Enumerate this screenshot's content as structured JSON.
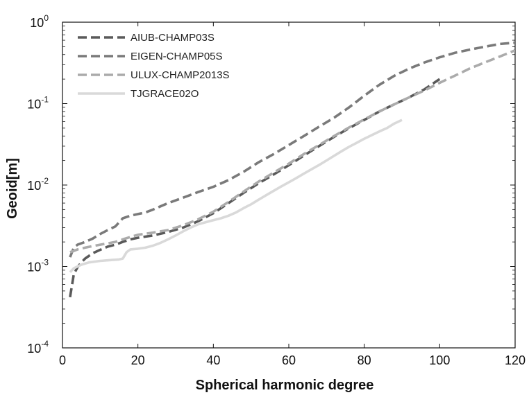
{
  "chart_data": {
    "type": "line",
    "xlabel": "Spherical harmonic degree",
    "ylabel": "Geoid[m]",
    "xlim": [
      0,
      120
    ],
    "ylim": [
      0.0001,
      1
    ],
    "yscale": "log",
    "grid": false,
    "legend_position": "top-left",
    "x_ticks": [
      "0",
      "20",
      "40",
      "60",
      "80",
      "100",
      "120"
    ],
    "y_ticks": [
      {
        "value": 0.0001,
        "base": "10",
        "exp": "-4"
      },
      {
        "value": 0.001,
        "base": "10",
        "exp": "-3"
      },
      {
        "value": 0.01,
        "base": "10",
        "exp": "-2"
      },
      {
        "value": 0.1,
        "base": "10",
        "exp": "-1"
      },
      {
        "value": 1,
        "base": "10",
        "exp": "0"
      }
    ],
    "series": [
      {
        "name": "AIUB-CHAMP03S",
        "color": "#5a5a5a",
        "dash": "dashed",
        "points": [
          [
            2,
            0.00042
          ],
          [
            3,
            0.0008
          ],
          [
            4,
            0.00098
          ],
          [
            5,
            0.00112
          ],
          [
            6,
            0.00125
          ],
          [
            8,
            0.00145
          ],
          [
            10,
            0.0016
          ],
          [
            12,
            0.00175
          ],
          [
            14,
            0.00185
          ],
          [
            16,
            0.002
          ],
          [
            18,
            0.00215
          ],
          [
            20,
            0.00225
          ],
          [
            24,
            0.0024
          ],
          [
            28,
            0.00265
          ],
          [
            32,
            0.003
          ],
          [
            36,
            0.0036
          ],
          [
            40,
            0.0045
          ],
          [
            44,
            0.006
          ],
          [
            48,
            0.008
          ],
          [
            52,
            0.0105
          ],
          [
            56,
            0.0135
          ],
          [
            60,
            0.0175
          ],
          [
            64,
            0.023
          ],
          [
            68,
            0.03
          ],
          [
            72,
            0.039
          ],
          [
            76,
            0.05
          ],
          [
            80,
            0.063
          ],
          [
            84,
            0.08
          ],
          [
            88,
            0.098
          ],
          [
            92,
            0.12
          ],
          [
            96,
            0.15
          ],
          [
            100,
            0.2
          ]
        ]
      },
      {
        "name": "EIGEN-CHAMP05S",
        "color": "#7a7a7a",
        "dash": "dashed",
        "points": [
          [
            2,
            0.0013
          ],
          [
            3,
            0.0017
          ],
          [
            4,
            0.00185
          ],
          [
            6,
            0.002
          ],
          [
            8,
            0.0022
          ],
          [
            10,
            0.0025
          ],
          [
            12,
            0.0028
          ],
          [
            14,
            0.0031
          ],
          [
            16,
            0.0039
          ],
          [
            18,
            0.0042
          ],
          [
            20,
            0.0044
          ],
          [
            22,
            0.0046
          ],
          [
            24,
            0.005
          ],
          [
            28,
            0.006
          ],
          [
            32,
            0.007
          ],
          [
            36,
            0.0082
          ],
          [
            40,
            0.0095
          ],
          [
            44,
            0.0115
          ],
          [
            48,
            0.0145
          ],
          [
            52,
            0.019
          ],
          [
            56,
            0.024
          ],
          [
            60,
            0.031
          ],
          [
            64,
            0.04
          ],
          [
            68,
            0.052
          ],
          [
            72,
            0.067
          ],
          [
            76,
            0.09
          ],
          [
            80,
            0.125
          ],
          [
            84,
            0.17
          ],
          [
            88,
            0.22
          ],
          [
            92,
            0.27
          ],
          [
            96,
            0.32
          ],
          [
            100,
            0.37
          ],
          [
            104,
            0.42
          ],
          [
            108,
            0.46
          ],
          [
            112,
            0.5
          ],
          [
            116,
            0.54
          ],
          [
            120,
            0.56
          ]
        ]
      },
      {
        "name": "ULUX-CHAMP2013S",
        "color": "#ababab",
        "dash": "dashed",
        "points": [
          [
            2,
            0.0015
          ],
          [
            3,
            0.00155
          ],
          [
            4,
            0.00162
          ],
          [
            6,
            0.0017
          ],
          [
            8,
            0.00178
          ],
          [
            10,
            0.00185
          ],
          [
            12,
            0.00192
          ],
          [
            14,
            0.002
          ],
          [
            16,
            0.00215
          ],
          [
            18,
            0.0023
          ],
          [
            20,
            0.00245
          ],
          [
            24,
            0.0026
          ],
          [
            28,
            0.0028
          ],
          [
            32,
            0.0032
          ],
          [
            36,
            0.0038
          ],
          [
            40,
            0.0047
          ],
          [
            44,
            0.0062
          ],
          [
            48,
            0.0083
          ],
          [
            52,
            0.011
          ],
          [
            56,
            0.0142
          ],
          [
            60,
            0.0183
          ],
          [
            64,
            0.024
          ],
          [
            68,
            0.031
          ],
          [
            72,
            0.04
          ],
          [
            76,
            0.051
          ],
          [
            80,
            0.064
          ],
          [
            84,
            0.08
          ],
          [
            88,
            0.098
          ],
          [
            92,
            0.12
          ],
          [
            96,
            0.145
          ],
          [
            100,
            0.18
          ],
          [
            104,
            0.22
          ],
          [
            108,
            0.27
          ],
          [
            112,
            0.32
          ],
          [
            116,
            0.38
          ],
          [
            120,
            0.45
          ]
        ]
      },
      {
        "name": "TJGRACE02O",
        "color": "#d9d9d9",
        "dash": "solid",
        "points": [
          [
            2,
            0.00085
          ],
          [
            3,
            0.00095
          ],
          [
            5,
            0.00105
          ],
          [
            7,
            0.00112
          ],
          [
            10,
            0.00117
          ],
          [
            13,
            0.0012
          ],
          [
            15,
            0.00122
          ],
          [
            16,
            0.00125
          ],
          [
            17,
            0.0015
          ],
          [
            18,
            0.00162
          ],
          [
            20,
            0.00165
          ],
          [
            22,
            0.0017
          ],
          [
            24,
            0.0018
          ],
          [
            26,
            0.00195
          ],
          [
            28,
            0.00215
          ],
          [
            30,
            0.0024
          ],
          [
            32,
            0.0027
          ],
          [
            34,
            0.003
          ],
          [
            36,
            0.0033
          ],
          [
            38,
            0.0035
          ],
          [
            40,
            0.0037
          ],
          [
            42,
            0.0039
          ],
          [
            44,
            0.0042
          ],
          [
            46,
            0.0046
          ],
          [
            48,
            0.0052
          ],
          [
            50,
            0.0058
          ],
          [
            52,
            0.0066
          ],
          [
            54,
            0.0075
          ],
          [
            56,
            0.0085
          ],
          [
            58,
            0.0096
          ],
          [
            60,
            0.0108
          ],
          [
            62,
            0.0122
          ],
          [
            64,
            0.0138
          ],
          [
            66,
            0.0156
          ],
          [
            68,
            0.0176
          ],
          [
            70,
            0.02
          ],
          [
            72,
            0.0228
          ],
          [
            74,
            0.026
          ],
          [
            76,
            0.0295
          ],
          [
            78,
            0.033
          ],
          [
            80,
            0.037
          ],
          [
            82,
            0.041
          ],
          [
            84,
            0.0455
          ],
          [
            86,
            0.05
          ],
          [
            88,
            0.057
          ],
          [
            90,
            0.063
          ]
        ]
      }
    ]
  }
}
